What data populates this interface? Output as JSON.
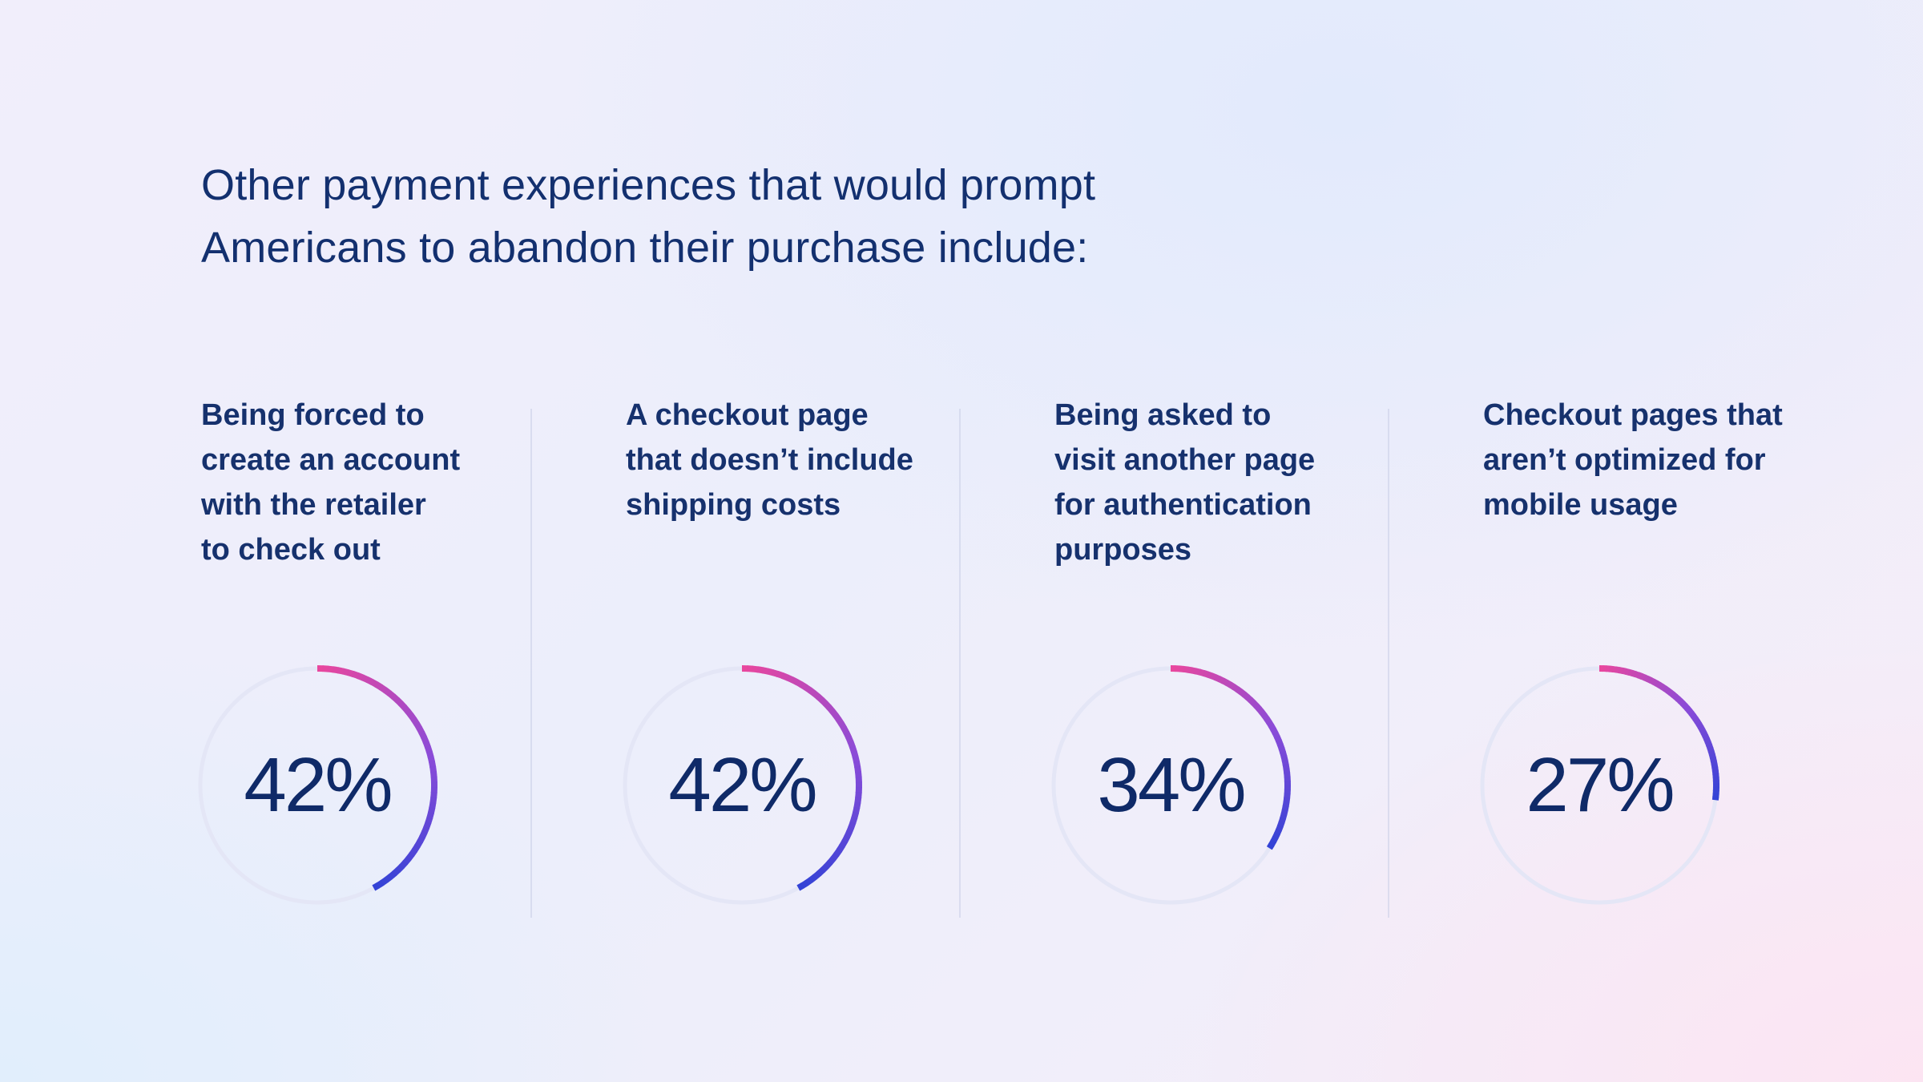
{
  "heading": {
    "line1": "Other payment experiences that would prompt",
    "line2": "Americans to abandon their purchase include:"
  },
  "colors": {
    "text": "#13306f",
    "arc_start": "#e8479e",
    "arc_mid": "#8a4bd8",
    "arc_end": "#3343d6",
    "track": "#e4e6f6"
  },
  "chart_data": [
    {
      "type": "pie",
      "value": 42,
      "value_label": "42%",
      "label_lines": [
        "Being forced to",
        "create an account",
        "with the retailer",
        "to check out"
      ]
    },
    {
      "type": "pie",
      "value": 42,
      "value_label": "42%",
      "label_lines": [
        "A checkout page",
        "that doesn’t include",
        "shipping costs"
      ]
    },
    {
      "type": "pie",
      "value": 34,
      "value_label": "34%",
      "label_lines": [
        "Being asked to",
        "visit another page",
        "for authentication",
        "purposes"
      ]
    },
    {
      "type": "pie",
      "value": 27,
      "value_label": "27%",
      "label_lines": [
        "Checkout pages that",
        "aren’t optimized for",
        "mobile usage"
      ]
    }
  ]
}
